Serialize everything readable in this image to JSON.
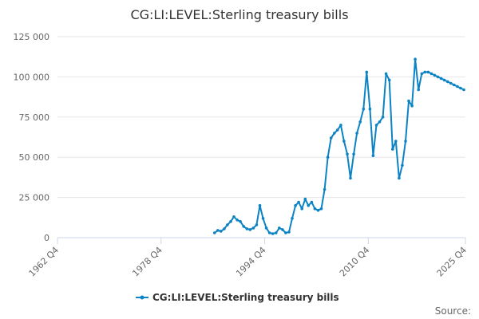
{
  "chart_data": {
    "type": "line",
    "title": "CG:LI:LEVEL:Sterling treasury bills",
    "xlabel": "",
    "ylabel": "",
    "x_tick_labels": [
      "1962 Q4",
      "1978 Q4",
      "1994 Q4",
      "2010 Q4",
      "2025 Q4"
    ],
    "x_tick_values": [
      1962.75,
      1978.75,
      1994.75,
      2010.75,
      2025.75
    ],
    "x_range": [
      1962.75,
      2025.75
    ],
    "y_tick_labels": [
      "0",
      "25 000",
      "50 000",
      "75 000",
      "100 000",
      "125 000"
    ],
    "y_tick_values": [
      0,
      25000,
      50000,
      75000,
      100000,
      125000
    ],
    "ylim": [
      0,
      125000
    ],
    "grid": true,
    "legend_position": "bottom-center",
    "series": [
      {
        "name": "CG:LI:LEVEL:Sterling treasury bills",
        "color": "#0c83c4",
        "x": [
          1987.0,
          1987.5,
          1988.0,
          1988.5,
          1989.0,
          1989.5,
          1990.0,
          1990.5,
          1991.0,
          1991.5,
          1992.0,
          1992.5,
          1993.0,
          1993.5,
          1994.0,
          1994.5,
          1995.0,
          1995.5,
          1996.0,
          1996.5,
          1997.0,
          1997.5,
          1998.0,
          1998.5,
          1999.0,
          1999.5,
          2000.0,
          2000.5,
          2001.0,
          2001.5,
          2002.0,
          2002.5,
          2003.0,
          2003.5,
          2004.0,
          2004.5,
          2005.0,
          2005.5,
          2006.0,
          2006.5,
          2007.0,
          2007.5,
          2008.0,
          2008.5,
          2009.0,
          2009.5,
          2010.0,
          2010.5,
          2011.0,
          2011.5,
          2012.0,
          2012.5,
          2013.0,
          2013.5,
          2014.0,
          2014.5,
          2015.0,
          2015.5,
          2016.0,
          2016.5,
          2017.0,
          2017.5,
          2018.0,
          2018.5,
          2019.0,
          2019.5,
          2020.0,
          2020.5,
          2021.0,
          2021.5,
          2022.0,
          2022.5,
          2023.0,
          2023.5,
          2024.0,
          2024.5,
          2025.0,
          2025.5
        ],
        "values": [
          3000,
          4500,
          4000,
          5500,
          8000,
          10000,
          13000,
          11000,
          10000,
          7000,
          5500,
          5000,
          6000,
          8000,
          20000,
          12000,
          6000,
          3000,
          2500,
          3000,
          6000,
          5000,
          3000,
          3500,
          12000,
          20000,
          22000,
          18000,
          24000,
          20000,
          22000,
          18000,
          17000,
          18000,
          30000,
          50000,
          62000,
          65000,
          67000,
          70000,
          60000,
          52000,
          37000,
          52000,
          65000,
          72000,
          80000,
          103000,
          80000,
          51000,
          70000,
          72000,
          75000,
          102000,
          98000,
          55000,
          60000,
          37000,
          45000,
          60000,
          85000,
          82000,
          111000,
          92000,
          102000,
          103000,
          103000,
          102000,
          101000,
          100000,
          99000,
          98000,
          97000,
          96000,
          95000,
          94000,
          93000,
          92000
        ]
      }
    ]
  },
  "source_label": "Source:"
}
